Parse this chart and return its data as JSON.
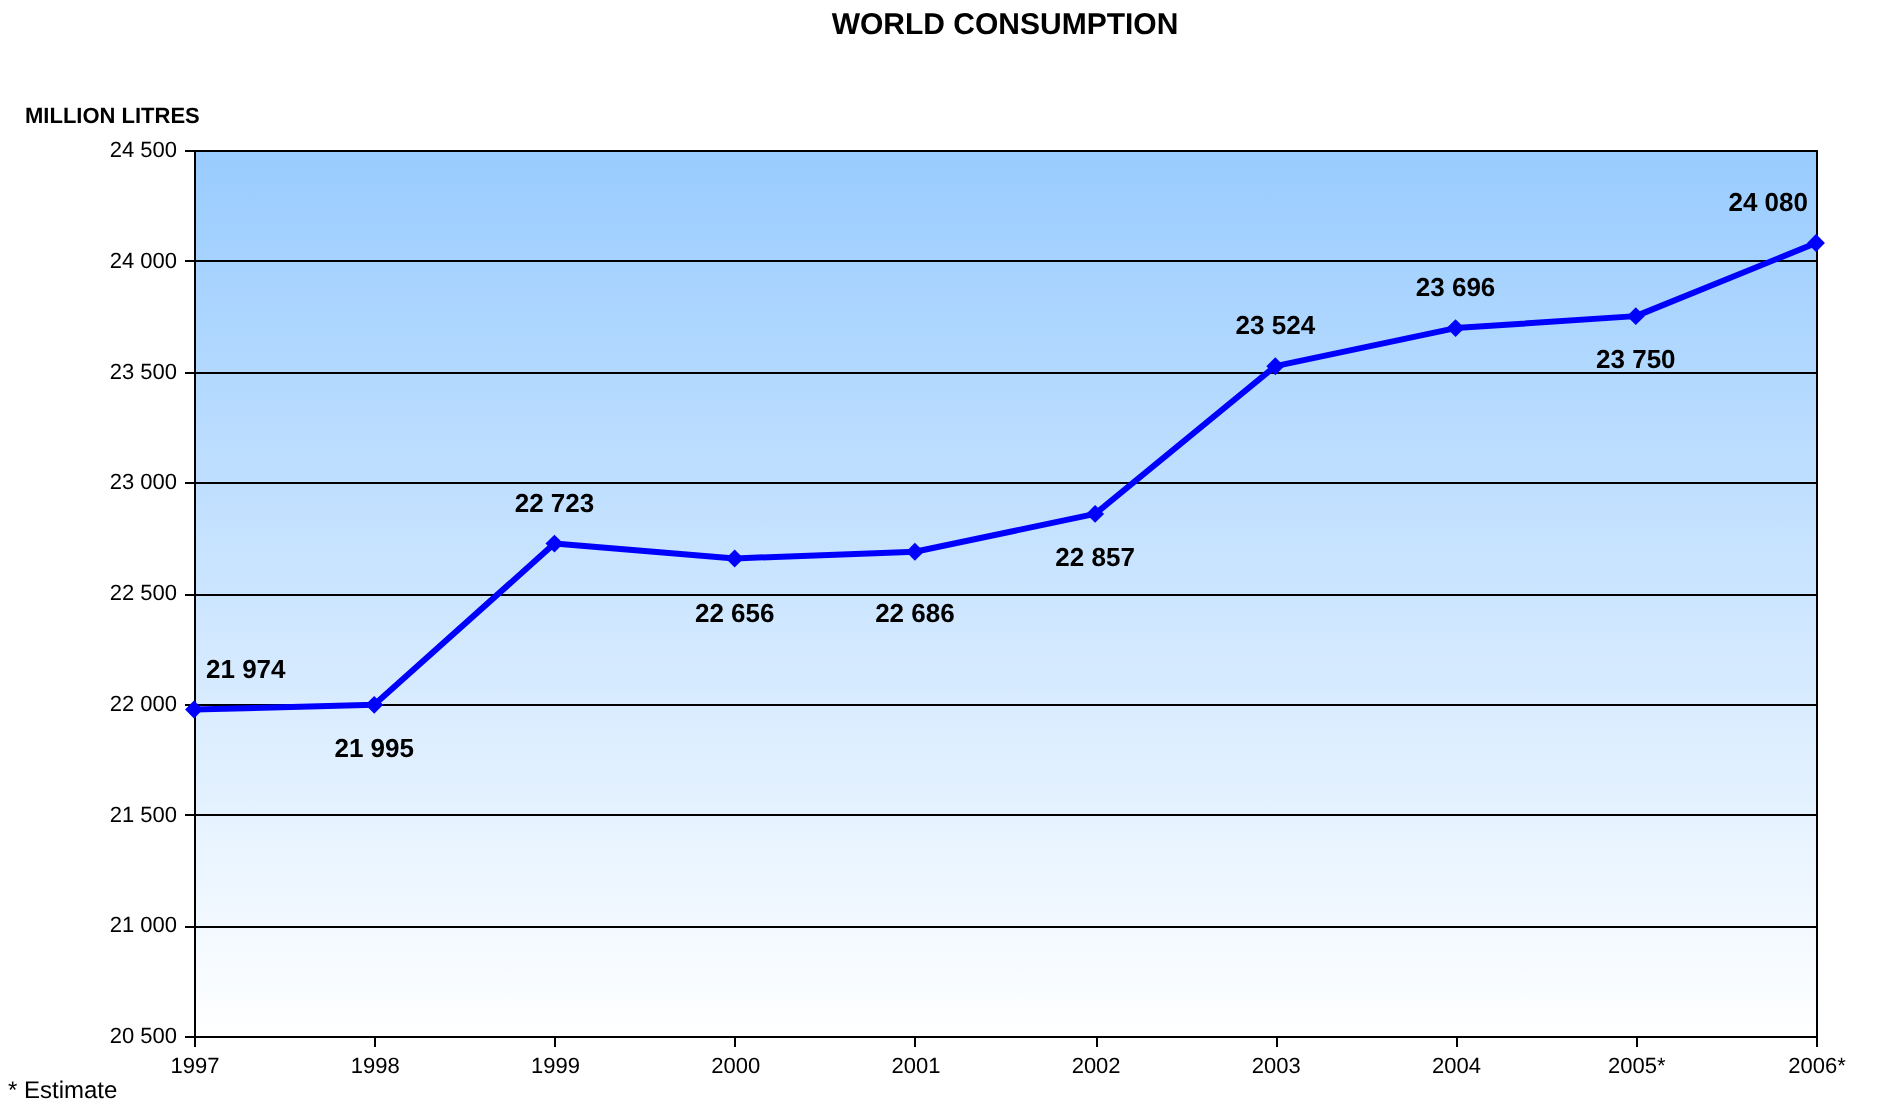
{
  "chart_data": {
    "type": "line",
    "title": "WORLD CONSUMPTION",
    "ylabel": "MILLION LITRES",
    "categories": [
      "1997",
      "1998",
      "1999",
      "2000",
      "2001",
      "2002",
      "2003",
      "2004",
      "2005*",
      "2006*"
    ],
    "series": [
      {
        "color": "#0000ff",
        "values": [
          21974,
          21995,
          22723,
          22656,
          22686,
          22857,
          23524,
          23696,
          23750,
          24080
        ],
        "value_labels": [
          "21 974",
          "21 995",
          "22 723",
          "22 656",
          "22 686",
          "22 857",
          "23 524",
          "23 696",
          "23 750",
          "24 080"
        ]
      }
    ],
    "ylim": [
      20500,
      24500
    ],
    "yticks": [
      {
        "value": 20500,
        "label": "20 500"
      },
      {
        "value": 21000,
        "label": "21 000"
      },
      {
        "value": 21500,
        "label": "21 500"
      },
      {
        "value": 22000,
        "label": "22 000"
      },
      {
        "value": 22500,
        "label": "22 500"
      },
      {
        "value": 23000,
        "label": "23 000"
      },
      {
        "value": 23500,
        "label": "23 500"
      },
      {
        "value": 24000,
        "label": "24 000"
      },
      {
        "value": 24500,
        "label": "24 500"
      }
    ],
    "grid": "y",
    "marker": "diamond",
    "line_style": "solid",
    "annotations": [
      "* Estimate"
    ]
  }
}
